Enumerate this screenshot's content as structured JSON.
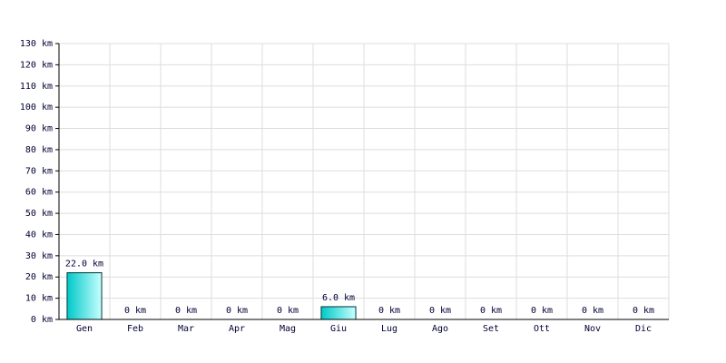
{
  "chart_data": {
    "type": "bar",
    "categories": [
      "Gen",
      "Feb",
      "Mar",
      "Apr",
      "Mag",
      "Giu",
      "Lug",
      "Ago",
      "Set",
      "Ott",
      "Nov",
      "Dic"
    ],
    "values": [
      22,
      0,
      0,
      0,
      0,
      6,
      0,
      0,
      0,
      0,
      0,
      0
    ],
    "value_labels": [
      "22.0 km",
      "0 km",
      "0 km",
      "0 km",
      "0 km",
      "6.0 km",
      "0 km",
      "0 km",
      "0 km",
      "0 km",
      "0 km",
      "0 km"
    ],
    "color": "#00c8c8",
    "ylim": [
      0,
      130
    ],
    "yticks": [
      {
        "value": 0,
        "label": "0 km"
      },
      {
        "value": 10,
        "label": "10 km"
      },
      {
        "value": 20,
        "label": "20 km"
      },
      {
        "value": 30,
        "label": "30 km"
      },
      {
        "value": 40,
        "label": "40 km"
      },
      {
        "value": 50,
        "label": "50 km"
      },
      {
        "value": 60,
        "label": "60 km"
      },
      {
        "value": 70,
        "label": "70 km"
      },
      {
        "value": 80,
        "label": "80 km"
      },
      {
        "value": 90,
        "label": "90 km"
      },
      {
        "value": 100,
        "label": "100 km"
      },
      {
        "value": 110,
        "label": "110 km"
      },
      {
        "value": 120,
        "label": "120 km"
      },
      {
        "value": 130,
        "label": "130 km"
      }
    ],
    "grid": true
  }
}
